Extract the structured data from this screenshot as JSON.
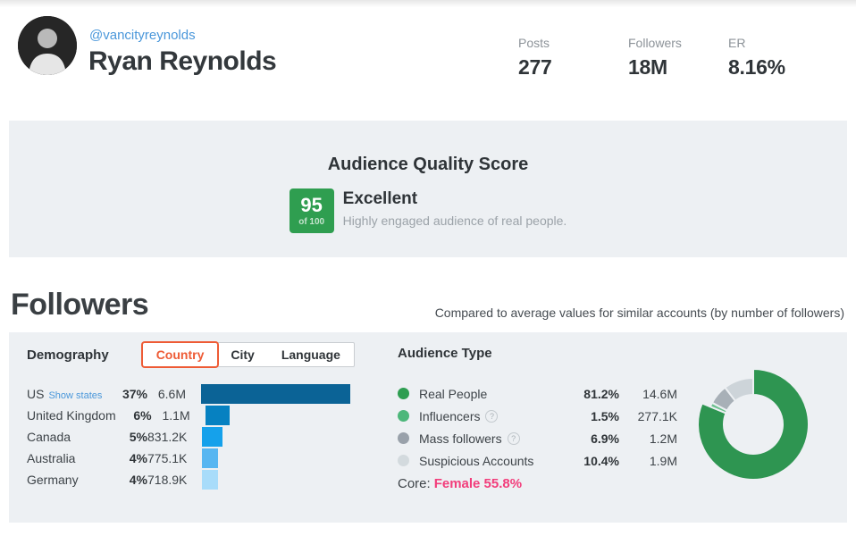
{
  "profile": {
    "handle": "@vancityreynolds",
    "name": "Ryan Reynolds"
  },
  "header": {
    "stats": [
      {
        "label": "Posts",
        "value": "277"
      },
      {
        "label": "Followers",
        "value": "18M"
      },
      {
        "label": "ER",
        "value": "8.16%"
      }
    ]
  },
  "aqs": {
    "title": "Audience Quality Score",
    "score": "95",
    "scale": "of 100",
    "grade": "Excellent",
    "description": "Highly engaged audience of real people.",
    "badge_color": "#2f9e50"
  },
  "followers_section": {
    "title": "Followers",
    "note": "Compared to average values for similar accounts (by number of followers)"
  },
  "demography": {
    "label": "Demography",
    "tabs": [
      {
        "label": "Country",
        "selected": true
      },
      {
        "label": "City",
        "selected": false
      },
      {
        "label": "Language",
        "selected": false
      }
    ]
  },
  "audience_type": {
    "title": "Audience Type",
    "core_label": "Core:",
    "core_value": "Female 55.8%",
    "core_color": "#f23d7b"
  },
  "chart_data": [
    {
      "type": "bar",
      "title": "Followers by country",
      "orientation": "horizontal",
      "categories": [
        "US",
        "United Kingdom",
        "Canada",
        "Australia",
        "Germany"
      ],
      "values": [
        37,
        6,
        5,
        4,
        4
      ],
      "percent_labels": [
        "37%",
        "6%",
        "5%",
        "4%",
        "4%"
      ],
      "absolute_labels": [
        "6.6M",
        "1.1M",
        "831.2K",
        "775.1K",
        "718.9K"
      ],
      "bar_colors": [
        "#0b6396",
        "#0681c1",
        "#15a1eb",
        "#57b6f1",
        "#a8dcfa"
      ],
      "xlim": [
        0,
        37
      ],
      "first_row_link": "Show states",
      "legend_position": "none",
      "grid": false
    },
    {
      "type": "pie",
      "subtype": "donut",
      "title": "Audience Type",
      "start_angle_deg": 0,
      "direction": "clockwise",
      "segments": [
        {
          "label": "Real People",
          "value": 81.2,
          "percent_label": "81.2%",
          "absolute_label": "14.6M",
          "color": "#2e9551",
          "dot_color": "#2e9e51",
          "has_help_icon": false,
          "exploded": true
        },
        {
          "label": "Influencers",
          "value": 1.5,
          "percent_label": "1.5%",
          "absolute_label": "277.1K",
          "color": "#6fc290",
          "dot_color": "#4db77a",
          "has_help_icon": true,
          "exploded": false
        },
        {
          "label": "Mass followers",
          "value": 6.9,
          "percent_label": "6.9%",
          "absolute_label": "1.2M",
          "color": "#a8b0b7",
          "dot_color": "#99a1aa",
          "has_help_icon": true,
          "exploded": false
        },
        {
          "label": "Suspicious Accounts",
          "value": 10.4,
          "percent_label": "10.4%",
          "absolute_label": "1.9M",
          "color": "#cdd4d9",
          "dot_color": "#d3dade",
          "has_help_icon": false,
          "exploded": false
        }
      ]
    }
  ],
  "colors": {
    "accent_orange": "#ee5b35",
    "link_blue": "#4a97da",
    "pink": "#f23d7b",
    "panel_bg": "#edf0f3"
  }
}
